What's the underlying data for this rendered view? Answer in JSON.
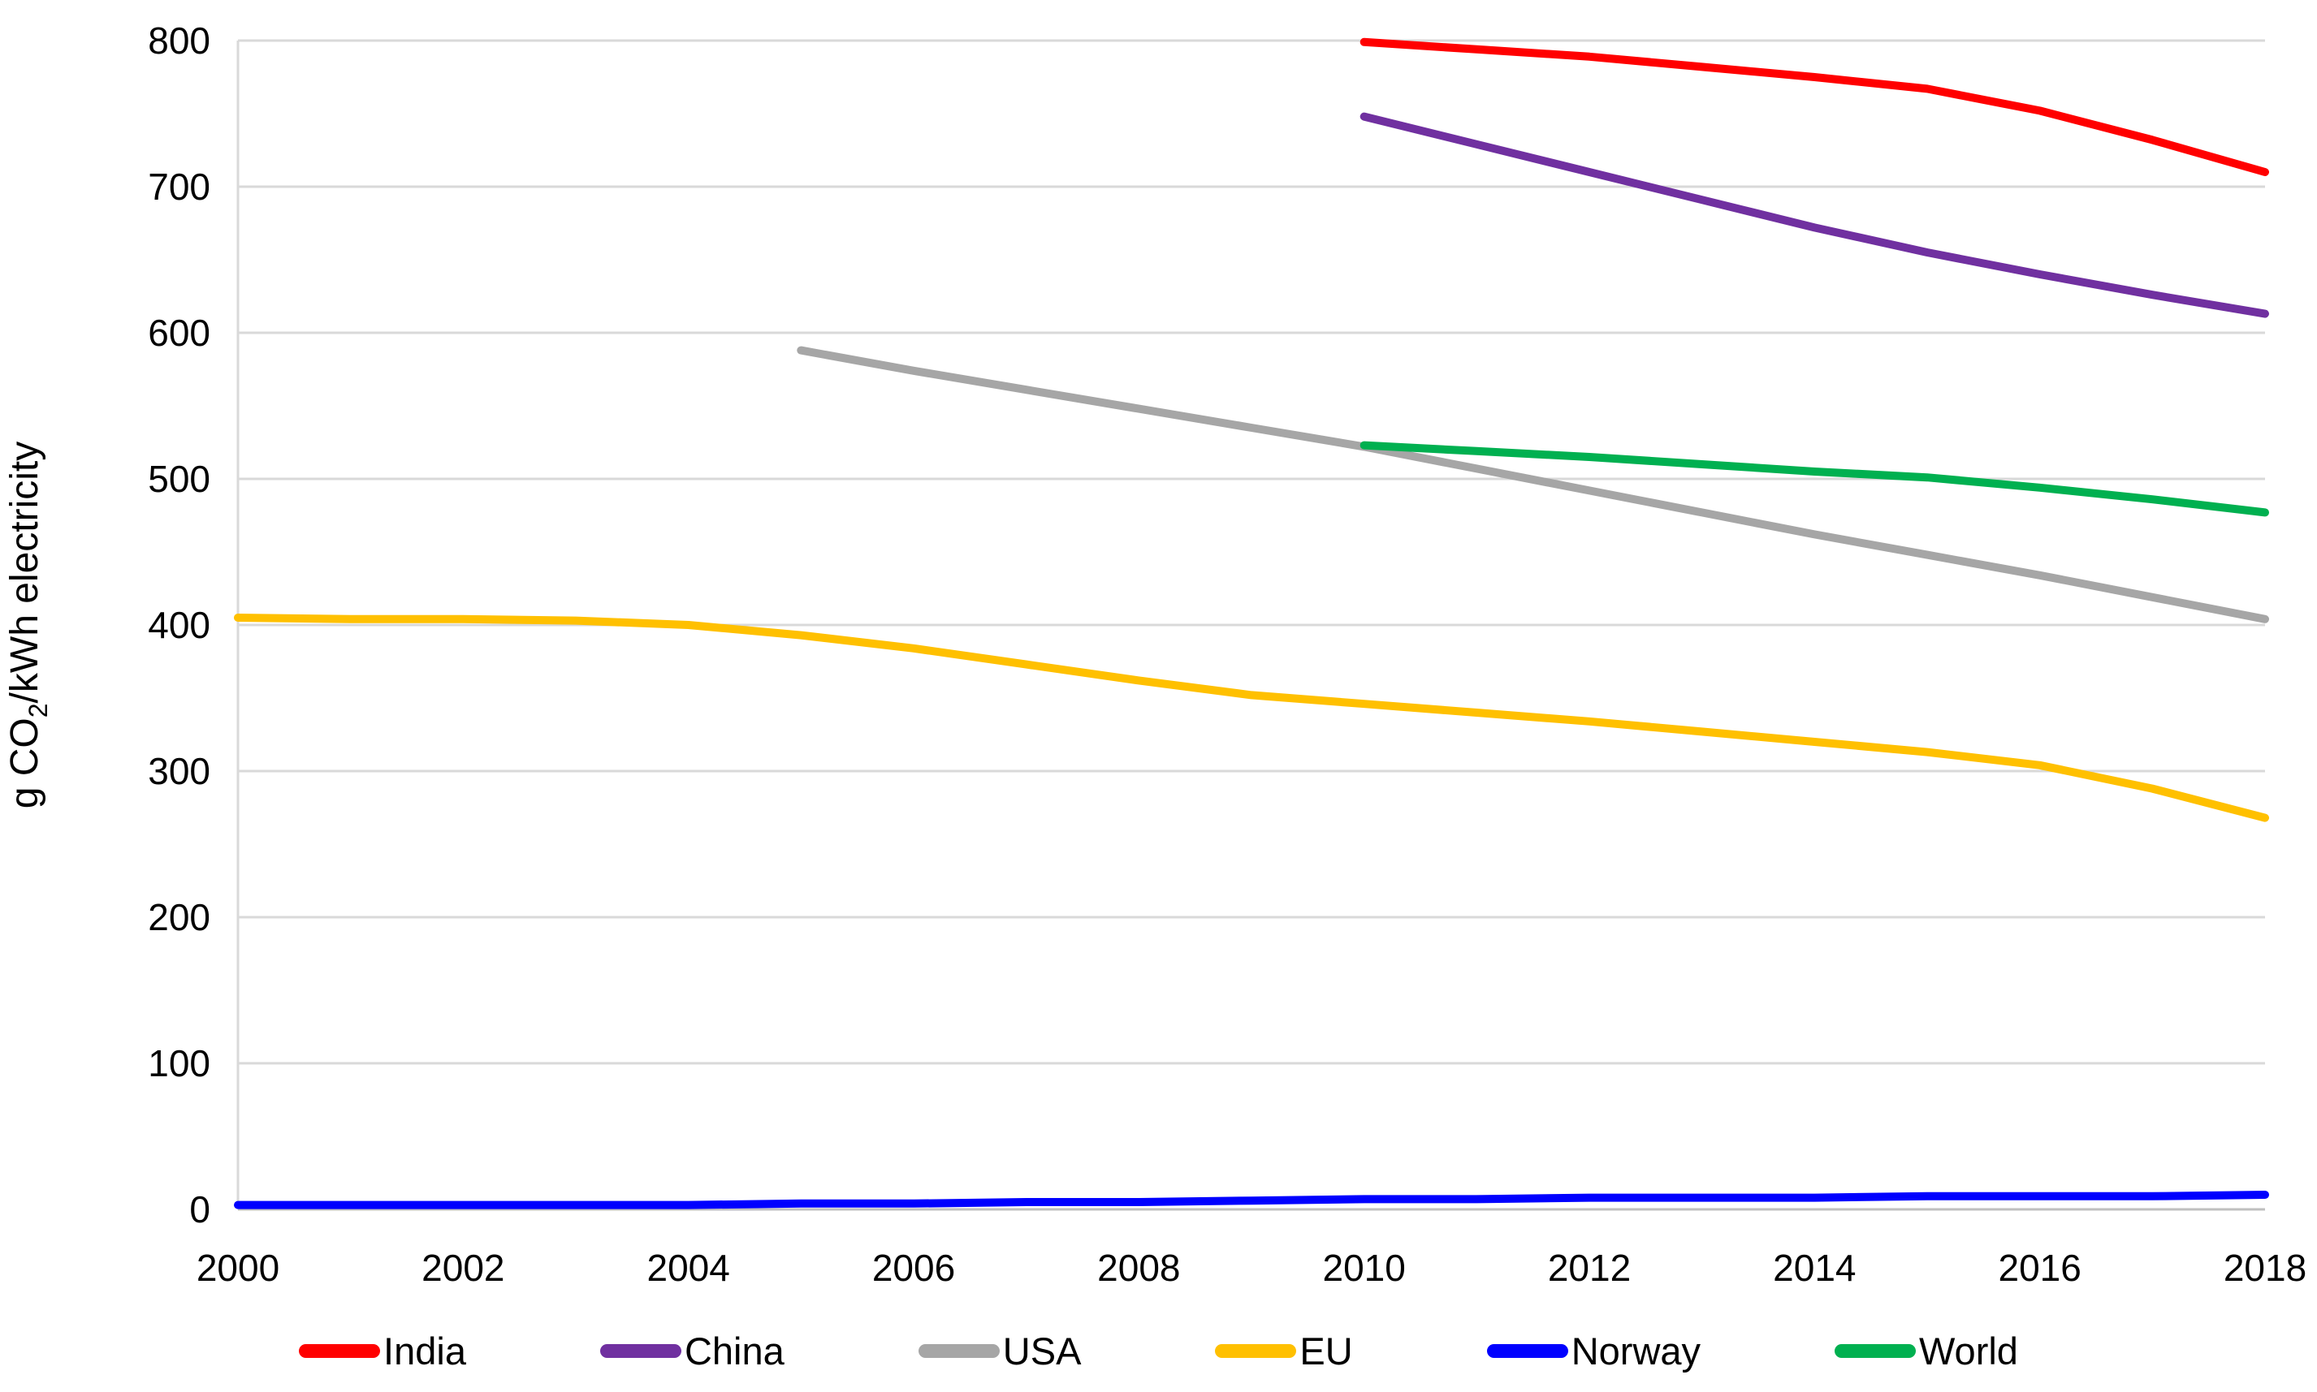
{
  "chart_data": {
    "type": "line",
    "title": "",
    "xlabel": "",
    "ylabel_parts": {
      "prefix": "g CO",
      "sub": "2",
      "suffix": "/kWh electricity"
    },
    "xlim": [
      2000,
      2018
    ],
    "ylim": [
      0,
      800
    ],
    "xticks": [
      2000,
      2002,
      2004,
      2006,
      2008,
      2010,
      2012,
      2014,
      2016,
      2018
    ],
    "yticks": [
      0,
      100,
      200,
      300,
      400,
      500,
      600,
      700,
      800
    ],
    "grid": true,
    "gridline_color": "#d9d9d9",
    "axis_line_color": "#bfbfbf",
    "legend_position": "bottom",
    "series": [
      {
        "name": "India",
        "color": "#ff0000",
        "points": [
          [
            2010,
            799
          ],
          [
            2011,
            794
          ],
          [
            2012,
            789
          ],
          [
            2013,
            782
          ],
          [
            2014,
            775
          ],
          [
            2015,
            767
          ],
          [
            2016,
            752
          ],
          [
            2017,
            732
          ],
          [
            2018,
            710
          ]
        ]
      },
      {
        "name": "China",
        "color": "#7030a0",
        "points": [
          [
            2010,
            748
          ],
          [
            2011,
            729
          ],
          [
            2012,
            710
          ],
          [
            2013,
            691
          ],
          [
            2014,
            672
          ],
          [
            2015,
            655
          ],
          [
            2016,
            640
          ],
          [
            2017,
            626
          ],
          [
            2018,
            613
          ]
        ]
      },
      {
        "name": "USA",
        "color": "#a6a6a6",
        "points": [
          [
            2005,
            588
          ],
          [
            2006,
            574
          ],
          [
            2007,
            561
          ],
          [
            2008,
            548
          ],
          [
            2009,
            535
          ],
          [
            2010,
            522
          ],
          [
            2011,
            507
          ],
          [
            2012,
            492
          ],
          [
            2013,
            477
          ],
          [
            2014,
            462
          ],
          [
            2015,
            448
          ],
          [
            2016,
            434
          ],
          [
            2017,
            419
          ],
          [
            2018,
            404
          ]
        ]
      },
      {
        "name": "EU",
        "color": "#ffc000",
        "points": [
          [
            2000,
            405
          ],
          [
            2001,
            404
          ],
          [
            2002,
            404
          ],
          [
            2003,
            403
          ],
          [
            2004,
            400
          ],
          [
            2005,
            393
          ],
          [
            2006,
            384
          ],
          [
            2007,
            373
          ],
          [
            2008,
            362
          ],
          [
            2009,
            352
          ],
          [
            2010,
            346
          ],
          [
            2011,
            340
          ],
          [
            2012,
            334
          ],
          [
            2013,
            327
          ],
          [
            2014,
            320
          ],
          [
            2015,
            313
          ],
          [
            2016,
            304
          ],
          [
            2017,
            288
          ],
          [
            2018,
            268
          ]
        ]
      },
      {
        "name": "Norway",
        "color": "#0000ff",
        "points": [
          [
            2000,
            3
          ],
          [
            2001,
            3
          ],
          [
            2002,
            3
          ],
          [
            2003,
            3
          ],
          [
            2004,
            3
          ],
          [
            2005,
            4
          ],
          [
            2006,
            4
          ],
          [
            2007,
            5
          ],
          [
            2008,
            5
          ],
          [
            2009,
            6
          ],
          [
            2010,
            7
          ],
          [
            2011,
            7
          ],
          [
            2012,
            8
          ],
          [
            2013,
            8
          ],
          [
            2014,
            8
          ],
          [
            2015,
            9
          ],
          [
            2016,
            9
          ],
          [
            2017,
            9
          ],
          [
            2018,
            10
          ]
        ]
      },
      {
        "name": "World",
        "color": "#00b050",
        "points": [
          [
            2010,
            523
          ],
          [
            2011,
            519
          ],
          [
            2012,
            515
          ],
          [
            2013,
            510
          ],
          [
            2014,
            505
          ],
          [
            2015,
            501
          ],
          [
            2016,
            494
          ],
          [
            2017,
            486
          ],
          [
            2018,
            477
          ]
        ]
      }
    ]
  }
}
